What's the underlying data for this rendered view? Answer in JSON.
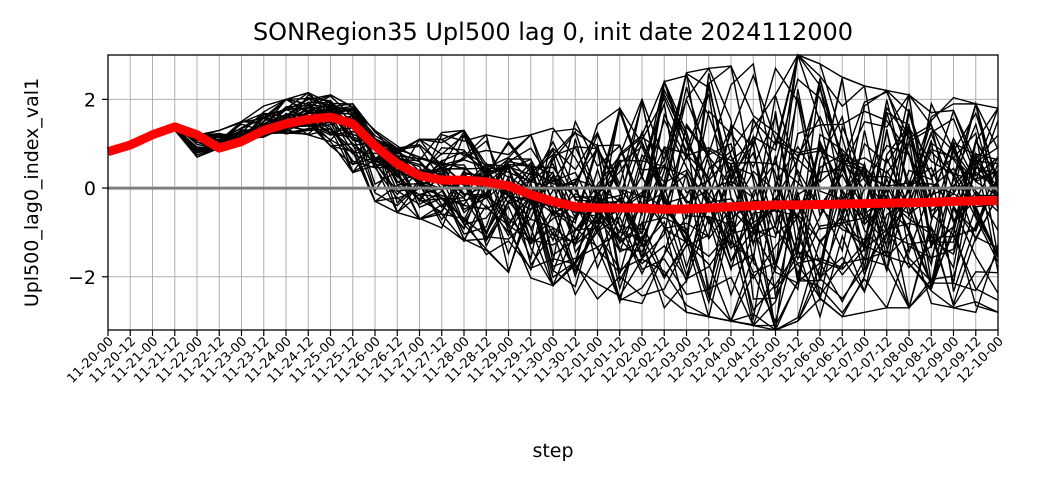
{
  "chart_data": {
    "type": "line",
    "title": "SONRegion35 Upl500 lag 0, init date 2024112000",
    "xlabel": "step",
    "ylabel": "Upl500_lag0_index_val1",
    "ylim": [
      -3.2,
      3.0
    ],
    "yticks": [
      -2,
      0,
      2
    ],
    "ytick_labels": [
      "−2",
      "0",
      "2"
    ],
    "grid": true,
    "categories": [
      "11-20-00",
      "11-20-12",
      "11-21-00",
      "11-21-12",
      "11-22-00",
      "11-22-12",
      "11-23-00",
      "11-23-12",
      "11-24-00",
      "11-24-12",
      "11-25-00",
      "11-25-12",
      "11-26-00",
      "11-26-12",
      "11-27-00",
      "11-27-12",
      "11-28-00",
      "11-28-12",
      "11-29-00",
      "11-29-12",
      "11-30-00",
      "11-30-12",
      "12-01-00",
      "12-01-12",
      "12-02-00",
      "12-02-12",
      "12-03-00",
      "12-03-12",
      "12-04-00",
      "12-04-12",
      "12-05-00",
      "12-05-12",
      "12-06-00",
      "12-06-12",
      "12-07-00",
      "12-07-12",
      "12-08-00",
      "12-08-12",
      "12-09-00",
      "12-09-12",
      "12-10-00"
    ],
    "ensemble_color": "#000000",
    "ensemble_member_count": 50,
    "ensemble_envelope": {
      "low": [
        0.82,
        0.95,
        1.2,
        1.3,
        0.7,
        0.9,
        1.1,
        1.15,
        1.2,
        1.15,
        0.95,
        0.35,
        -0.3,
        -0.55,
        -0.7,
        -0.9,
        -1.2,
        -1.5,
        -1.9,
        -2.1,
        -2.2,
        -2.4,
        -2.5,
        -2.6,
        -2.7,
        -2.7,
        -2.8,
        -2.9,
        -3.0,
        -3.1,
        -3.2,
        -3.0,
        -2.9,
        -2.9,
        -2.8,
        -2.7,
        -2.7,
        -2.6,
        -2.7,
        -2.8,
        -2.8
      ],
      "high": [
        0.82,
        0.95,
        1.2,
        1.45,
        1.15,
        1.3,
        1.5,
        1.85,
        2.0,
        2.15,
        2.1,
        1.9,
        1.3,
        0.95,
        1.1,
        1.25,
        1.3,
        1.2,
        1.1,
        1.2,
        1.35,
        1.5,
        1.6,
        1.8,
        2.0,
        2.4,
        2.6,
        2.7,
        2.75,
        2.8,
        2.7,
        3.0,
        2.8,
        2.5,
        2.3,
        2.2,
        2.1,
        1.9,
        2.1,
        1.9,
        1.8
      ]
    },
    "series": [
      {
        "color": "#ff0000",
        "values": [
          0.82,
          0.97,
          1.2,
          1.38,
          1.2,
          0.9,
          1.05,
          1.3,
          1.45,
          1.55,
          1.6,
          1.45,
          0.95,
          0.55,
          0.28,
          0.18,
          0.18,
          0.14,
          0.05,
          -0.15,
          -0.3,
          -0.42,
          -0.45,
          -0.45,
          -0.45,
          -0.48,
          -0.47,
          -0.45,
          -0.42,
          -0.4,
          -0.38,
          -0.38,
          -0.37,
          -0.36,
          -0.35,
          -0.34,
          -0.33,
          -0.32,
          -0.3,
          -0.29,
          -0.28
        ]
      }
    ],
    "zero_line_color": "#808080"
  }
}
